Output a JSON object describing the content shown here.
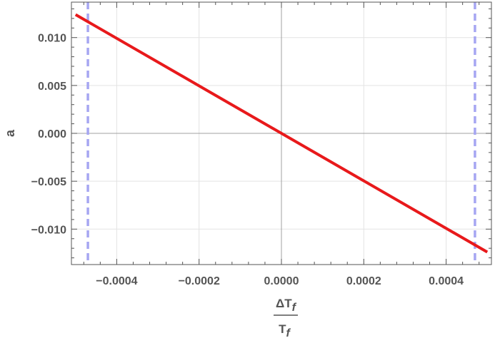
{
  "chart_data": {
    "type": "line",
    "title": "",
    "ylabel": "a",
    "xlabel": {
      "numerator": "ΔT",
      "numerator_sub": "f",
      "denominator": "T",
      "denominator_sub": "f"
    },
    "xlim": [
      -0.00051,
      0.00051
    ],
    "ylim": [
      -0.0137,
      0.0137
    ],
    "x_ticks": [
      -0.0004,
      -0.0002,
      0,
      0.0002,
      0.0004
    ],
    "x_tick_labels": [
      "−0.0004",
      "−0.0002",
      "0.0000",
      "0.0002",
      "0.0004"
    ],
    "y_ticks": [
      -0.01,
      -0.005,
      0,
      0.005,
      0.01
    ],
    "y_tick_labels": [
      "−0.010",
      "−0.005",
      "0.000",
      "0.005",
      "0.010"
    ],
    "grid": true,
    "series": [
      {
        "color": "#e8191b",
        "style": "solid",
        "x": [
          -0.0005,
          0.0005
        ],
        "y": [
          0.0124,
          -0.0124
        ]
      }
    ],
    "vertical_lines": [
      {
        "x": -0.00047,
        "color": "#a6a6f2",
        "style": "dashed"
      },
      {
        "x": 0.00047,
        "color": "#a6a6f2",
        "style": "dashed"
      }
    ]
  }
}
